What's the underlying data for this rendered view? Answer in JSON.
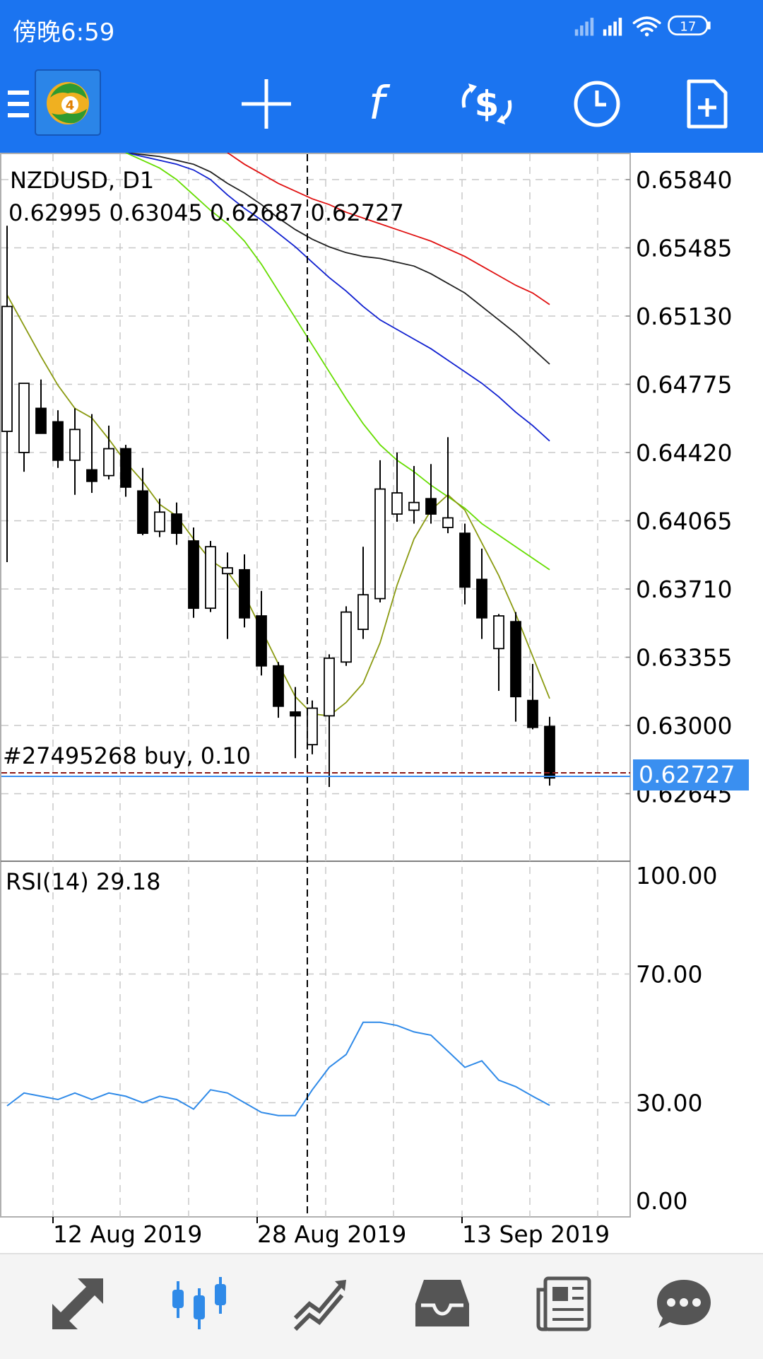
{
  "status_bar": {
    "time": "傍晚6:59",
    "battery": "17"
  },
  "toolbar": {
    "icons": [
      "menu-icon",
      "mt4-logo",
      "crosshair-icon",
      "indicators-icon",
      "trade-icon",
      "timeframe-icon",
      "new-order-icon"
    ]
  },
  "chart": {
    "symbol_timeframe": "NZDUSD, D1",
    "ohlc": "0.62995 0.63045 0.62687 0.62727",
    "order_label": "#27495268 buy, 0.10",
    "current_price": "0.62727",
    "hidden_price_label": "0.62645",
    "rsi_label": "RSI(14) 29.18"
  },
  "chart_data": [
    {
      "type": "candlestick",
      "price_axis_ticks": [
        "0.65840",
        "0.65485",
        "0.65130",
        "0.64775",
        "0.64420",
        "0.64065",
        "0.63710",
        "0.63355",
        "0.63000",
        "0.62645"
      ],
      "date_ticks": [
        "12 Aug 2019",
        "28 Aug 2019",
        "13 Sep 2019"
      ],
      "ylim": [
        0.6245,
        0.6597
      ],
      "candles": [
        {
          "o": 0.6453,
          "h": 0.656,
          "l": 0.6385,
          "c": 0.6518
        },
        {
          "o": 0.6442,
          "h": 0.6475,
          "l": 0.6432,
          "c": 0.6478
        },
        {
          "o": 0.6465,
          "h": 0.648,
          "l": 0.6452,
          "c": 0.6452
        },
        {
          "o": 0.6458,
          "h": 0.6464,
          "l": 0.6434,
          "c": 0.6438
        },
        {
          "o": 0.6438,
          "h": 0.6465,
          "l": 0.642,
          "c": 0.6454
        },
        {
          "o": 0.6433,
          "h": 0.6462,
          "l": 0.6421,
          "c": 0.6427
        },
        {
          "o": 0.643,
          "h": 0.6456,
          "l": 0.6428,
          "c": 0.6444
        },
        {
          "o": 0.6444,
          "h": 0.6446,
          "l": 0.6419,
          "c": 0.6424
        },
        {
          "o": 0.6422,
          "h": 0.6434,
          "l": 0.6399,
          "c": 0.64
        },
        {
          "o": 0.6401,
          "h": 0.6418,
          "l": 0.6398,
          "c": 0.6411
        },
        {
          "o": 0.641,
          "h": 0.6416,
          "l": 0.6394,
          "c": 0.64
        },
        {
          "o": 0.6396,
          "h": 0.6403,
          "l": 0.6356,
          "c": 0.6361
        },
        {
          "o": 0.6361,
          "h": 0.6396,
          "l": 0.6359,
          "c": 0.6393
        },
        {
          "o": 0.6379,
          "h": 0.639,
          "l": 0.6345,
          "c": 0.6382
        },
        {
          "o": 0.6381,
          "h": 0.6389,
          "l": 0.6351,
          "c": 0.6356
        },
        {
          "o": 0.6357,
          "h": 0.637,
          "l": 0.6326,
          "c": 0.6331
        },
        {
          "o": 0.6331,
          "h": 0.6333,
          "l": 0.6304,
          "c": 0.631
        },
        {
          "o": 0.6307,
          "h": 0.632,
          "l": 0.6283,
          "c": 0.6305
        },
        {
          "o": 0.629,
          "h": 0.6313,
          "l": 0.6285,
          "c": 0.6309
        },
        {
          "o": 0.6305,
          "h": 0.6337,
          "l": 0.6268,
          "c": 0.6335
        },
        {
          "o": 0.6333,
          "h": 0.6362,
          "l": 0.6331,
          "c": 0.6359
        },
        {
          "o": 0.635,
          "h": 0.6393,
          "l": 0.6345,
          "c": 0.6368
        },
        {
          "o": 0.6366,
          "h": 0.6438,
          "l": 0.6364,
          "c": 0.6423
        },
        {
          "o": 0.641,
          "h": 0.6442,
          "l": 0.6406,
          "c": 0.6421
        },
        {
          "o": 0.6412,
          "h": 0.6435,
          "l": 0.6405,
          "c": 0.6416
        },
        {
          "o": 0.6418,
          "h": 0.6436,
          "l": 0.6405,
          "c": 0.641
        },
        {
          "o": 0.6403,
          "h": 0.645,
          "l": 0.64,
          "c": 0.6408
        },
        {
          "o": 0.64,
          "h": 0.6405,
          "l": 0.6363,
          "c": 0.6372
        },
        {
          "o": 0.6376,
          "h": 0.6392,
          "l": 0.6345,
          "c": 0.6356
        },
        {
          "o": 0.634,
          "h": 0.6358,
          "l": 0.6318,
          "c": 0.6357
        },
        {
          "o": 0.6354,
          "h": 0.6359,
          "l": 0.6302,
          "c": 0.6315
        },
        {
          "o": 0.6313,
          "h": 0.6332,
          "l": 0.6298,
          "c": 0.6299
        },
        {
          "o": 0.62995,
          "h": 0.63045,
          "l": 0.62687,
          "c": 0.62727
        }
      ],
      "moving_averages": [
        {
          "color": "#e01010",
          "values": [
            null,
            null,
            null,
            null,
            null,
            null,
            null,
            null,
            null,
            null,
            null,
            null,
            null,
            0.6598,
            0.6592,
            0.6587,
            0.6582,
            0.6578,
            0.6574,
            0.6571,
            0.6567,
            0.6564,
            0.6561,
            0.6558,
            0.6555,
            0.6552,
            0.6548,
            0.6544,
            0.6539,
            0.6534,
            0.6529,
            0.6525,
            0.6519
          ]
        },
        {
          "color": "#202020",
          "values": [
            null,
            null,
            null,
            null,
            null,
            null,
            null,
            0.6598,
            0.6597,
            0.6596,
            0.6594,
            0.6592,
            0.6588,
            0.6582,
            0.6577,
            0.6571,
            0.6564,
            0.6558,
            0.6553,
            0.6549,
            0.6546,
            0.6544,
            0.6543,
            0.6541,
            0.6539,
            0.6535,
            0.653,
            0.6525,
            0.6518,
            0.6511,
            0.6504,
            0.6496,
            0.6488
          ]
        },
        {
          "color": "#1020d0",
          "values": [
            null,
            null,
            null,
            null,
            null,
            null,
            null,
            0.6598,
            0.6596,
            0.6594,
            0.6592,
            0.6589,
            0.6584,
            0.6576,
            0.6569,
            0.6563,
            0.6556,
            0.6549,
            0.6541,
            0.6533,
            0.6526,
            0.6518,
            0.6511,
            0.6506,
            0.6501,
            0.6496,
            0.649,
            0.6484,
            0.6478,
            0.6471,
            0.6463,
            0.6456,
            0.6448
          ]
        },
        {
          "color": "#66dd00",
          "values": [
            null,
            null,
            null,
            null,
            null,
            null,
            null,
            0.6598,
            0.6594,
            0.659,
            0.6584,
            0.6576,
            0.6568,
            0.6561,
            0.6552,
            0.654,
            0.6526,
            0.6512,
            0.6498,
            0.6484,
            0.647,
            0.6457,
            0.6446,
            0.6438,
            0.6432,
            0.6425,
            0.6419,
            0.6413,
            0.6405,
            0.6399,
            0.6393,
            0.6387,
            0.6381
          ]
        },
        {
          "color": "#8a9a10",
          "values": [
            0.6524,
            0.6508,
            0.6492,
            0.6477,
            0.6465,
            0.646,
            0.6449,
            0.6437,
            0.6427,
            0.6415,
            0.6409,
            0.6397,
            0.6386,
            0.638,
            0.6368,
            0.635,
            0.6332,
            0.6315,
            0.6306,
            0.6305,
            0.6312,
            0.6322,
            0.6343,
            0.6373,
            0.6397,
            0.6412,
            0.642,
            0.6412,
            0.6395,
            0.6378,
            0.6358,
            0.6336,
            0.6314
          ]
        }
      ]
    },
    {
      "type": "line",
      "rsi_axis_ticks": [
        "100.00",
        "70.00",
        "30.00",
        "0.00"
      ],
      "ylim": [
        0,
        100
      ],
      "rsi": [
        29,
        33,
        32,
        31,
        33,
        31,
        33,
        32,
        30,
        32,
        31,
        28,
        34,
        33,
        30,
        27,
        26,
        26,
        34,
        41,
        45,
        55,
        55,
        54,
        52,
        51,
        46,
        41,
        43,
        37,
        35,
        32,
        29.18
      ]
    }
  ],
  "bottom_nav": {
    "items": [
      "quotes-icon",
      "chart-icon",
      "trade-icon",
      "history-icon",
      "news-icon",
      "chat-icon"
    ]
  }
}
